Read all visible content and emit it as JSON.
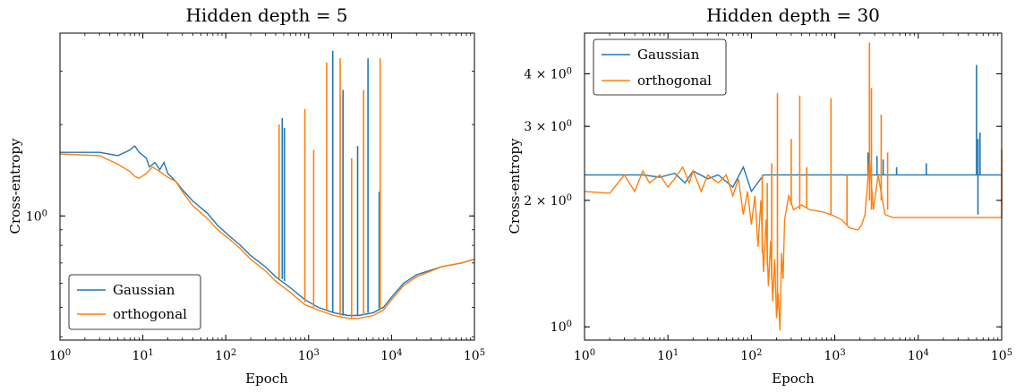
{
  "colors": {
    "gaussian": "#1f77b4",
    "orthogonal": "#ff7f0e"
  },
  "chart_data": [
    {
      "type": "line",
      "title": "Hidden depth = 5",
      "xlabel": "Epoch",
      "ylabel": "Cross-entropy",
      "xscale": "log",
      "yscale": "log",
      "xlim": [
        1,
        100000
      ],
      "ylim": [
        0.39,
        4.0
      ],
      "xticks": [
        {
          "v": 1,
          "b": "10",
          "e": "0"
        },
        {
          "v": 10,
          "b": "10",
          "e": "1"
        },
        {
          "v": 100,
          "b": "10",
          "e": "2"
        },
        {
          "v": 1000,
          "b": "10",
          "e": "3"
        },
        {
          "v": 10000,
          "b": "10",
          "e": "4"
        },
        {
          "v": 100000,
          "b": "10",
          "e": "5"
        }
      ],
      "yticks": [
        {
          "v": 1.0,
          "b": "10",
          "e": "0"
        }
      ],
      "legend_loc": "lower-left",
      "grid": false,
      "series": [
        {
          "name": "Gaussian",
          "color": "#1f77b4",
          "points": [
            [
              1,
              1.62
            ],
            [
              3,
              1.62
            ],
            [
              5,
              1.58
            ],
            [
              7,
              1.65
            ],
            [
              8,
              1.7
            ],
            [
              9,
              1.62
            ],
            [
              11,
              1.55
            ],
            [
              12,
              1.45
            ],
            [
              14,
              1.5
            ],
            [
              16,
              1.42
            ],
            [
              18,
              1.5
            ],
            [
              20,
              1.38
            ],
            [
              25,
              1.3
            ],
            [
              30,
              1.22
            ],
            [
              40,
              1.12
            ],
            [
              60,
              1.02
            ],
            [
              80,
              0.93
            ],
            [
              110,
              0.86
            ],
            [
              150,
              0.8
            ],
            [
              200,
              0.74
            ],
            [
              300,
              0.68
            ],
            [
              400,
              0.63
            ],
            [
              600,
              0.58
            ],
            [
              900,
              0.53
            ],
            [
              1300,
              0.5
            ],
            [
              2000,
              0.48
            ],
            [
              3000,
              0.47
            ],
            [
              4000,
              0.47
            ],
            [
              6000,
              0.48
            ],
            [
              8000,
              0.5
            ],
            [
              10000,
              0.54
            ],
            [
              14000,
              0.6
            ],
            [
              20000,
              0.64
            ],
            [
              40000,
              0.68
            ],
            [
              70000,
              0.7
            ],
            [
              100000,
              0.72
            ]
          ],
          "spikes": [
            {
              "x": 480,
              "base": 0.62,
              "peak": 2.1
            },
            {
              "x": 510,
              "base": 0.61,
              "peak": 1.95
            },
            {
              "x": 1950,
              "base": 0.48,
              "peak": 3.5
            },
            {
              "x": 2600,
              "base": 0.47,
              "peak": 2.6
            },
            {
              "x": 3900,
              "base": 0.47,
              "peak": 1.7
            },
            {
              "x": 5200,
              "base": 0.48,
              "peak": 3.3
            },
            {
              "x": 7100,
              "base": 0.49,
              "peak": 1.2
            }
          ]
        },
        {
          "name": "orthogonal",
          "color": "#ff7f0e",
          "points": [
            [
              1,
              1.6
            ],
            [
              3,
              1.58
            ],
            [
              5,
              1.48
            ],
            [
              7,
              1.4
            ],
            [
              8,
              1.35
            ],
            [
              9,
              1.33
            ],
            [
              11,
              1.38
            ],
            [
              13,
              1.45
            ],
            [
              16,
              1.4
            ],
            [
              20,
              1.34
            ],
            [
              25,
              1.3
            ],
            [
              30,
              1.2
            ],
            [
              40,
              1.08
            ],
            [
              60,
              0.98
            ],
            [
              80,
              0.9
            ],
            [
              110,
              0.84
            ],
            [
              150,
              0.78
            ],
            [
              200,
              0.72
            ],
            [
              300,
              0.66
            ],
            [
              400,
              0.61
            ],
            [
              600,
              0.56
            ],
            [
              900,
              0.51
            ],
            [
              1300,
              0.49
            ],
            [
              2000,
              0.47
            ],
            [
              3000,
              0.46
            ],
            [
              4000,
              0.46
            ],
            [
              6000,
              0.47
            ],
            [
              8000,
              0.49
            ],
            [
              10000,
              0.53
            ],
            [
              14000,
              0.59
            ],
            [
              20000,
              0.63
            ],
            [
              40000,
              0.68
            ],
            [
              70000,
              0.7
            ],
            [
              100000,
              0.72
            ]
          ],
          "spikes": [
            {
              "x": 440,
              "base": 0.62,
              "peak": 2.0
            },
            {
              "x": 900,
              "base": 0.52,
              "peak": 2.25
            },
            {
              "x": 1150,
              "base": 0.5,
              "peak": 1.65
            },
            {
              "x": 1650,
              "base": 0.49,
              "peak": 3.2
            },
            {
              "x": 2400,
              "base": 0.47,
              "peak": 3.3
            },
            {
              "x": 3300,
              "base": 0.46,
              "peak": 1.55
            },
            {
              "x": 4600,
              "base": 0.47,
              "peak": 2.6
            },
            {
              "x": 7300,
              "base": 0.49,
              "peak": 3.3
            }
          ]
        }
      ]
    },
    {
      "type": "line",
      "title": "Hidden depth = 30",
      "xlabel": "Epoch",
      "ylabel": "Cross-entropy",
      "xscale": "log",
      "yscale": "log",
      "xlim": [
        1,
        100000
      ],
      "ylim": [
        0.93,
        5.0
      ],
      "xticks": [
        {
          "v": 1,
          "b": "10",
          "e": "0"
        },
        {
          "v": 10,
          "b": "10",
          "e": "1"
        },
        {
          "v": 100,
          "b": "10",
          "e": "2"
        },
        {
          "v": 1000,
          "b": "10",
          "e": "3"
        },
        {
          "v": 10000,
          "b": "10",
          "e": "4"
        },
        {
          "v": 100000,
          "b": "10",
          "e": "5"
        }
      ],
      "yticks": [
        {
          "v": 1.0,
          "b": "10",
          "e": "0"
        },
        {
          "v": 2.0,
          "b": "2 × 10",
          "e": "0"
        },
        {
          "v": 3.0,
          "b": "3 × 10",
          "e": "0"
        },
        {
          "v": 4.0,
          "b": "4 × 10",
          "e": "0"
        }
      ],
      "legend_loc": "upper-left",
      "grid": false,
      "series": [
        {
          "name": "Gaussian",
          "color": "#1f77b4",
          "points": [
            [
              1,
              2.3
            ],
            [
              3,
              2.3
            ],
            [
              5,
              2.3
            ],
            [
              8,
              2.27
            ],
            [
              12,
              2.32
            ],
            [
              16,
              2.2
            ],
            [
              20,
              2.35
            ],
            [
              30,
              2.25
            ],
            [
              40,
              2.3
            ],
            [
              60,
              2.15
            ],
            [
              80,
              2.4
            ],
            [
              100,
              2.1
            ],
            [
              140,
              2.3
            ],
            [
              200,
              2.3
            ],
            [
              500,
              2.3
            ],
            [
              1000,
              2.3
            ],
            [
              2500,
              2.3
            ],
            [
              4000,
              2.3
            ],
            [
              10000,
              2.3
            ],
            [
              50000,
              2.3
            ],
            [
              100000,
              2.3
            ]
          ],
          "spikes": [
            {
              "x": 2500,
              "base": 2.3,
              "peak": 2.6
            },
            {
              "x": 3200,
              "base": 2.3,
              "peak": 2.55
            },
            {
              "x": 3800,
              "base": 2.3,
              "peak": 2.5
            },
            {
              "x": 5500,
              "base": 2.3,
              "peak": 2.4
            },
            {
              "x": 12500,
              "base": 2.3,
              "peak": 2.45
            },
            {
              "x": 50000,
              "base": 2.3,
              "peak": 4.2
            },
            {
              "x": 52000,
              "base": 1.85,
              "peak": 2.8
            },
            {
              "x": 55000,
              "base": 2.3,
              "peak": 2.9
            }
          ]
        },
        {
          "name": "orthogonal",
          "color": "#ff7f0e",
          "points": [
            [
              1,
              2.1
            ],
            [
              2,
              2.08
            ],
            [
              3,
              2.3
            ],
            [
              4,
              2.1
            ],
            [
              5,
              2.35
            ],
            [
              6,
              2.2
            ],
            [
              8,
              2.3
            ],
            [
              10,
              2.15
            ],
            [
              12,
              2.25
            ],
            [
              15,
              2.4
            ],
            [
              18,
              2.2
            ],
            [
              20,
              2.35
            ],
            [
              25,
              2.1
            ],
            [
              30,
              2.3
            ],
            [
              40,
              2.2
            ],
            [
              50,
              2.3
            ],
            [
              60,
              2.05
            ],
            [
              70,
              2.25
            ],
            [
              80,
              1.85
            ],
            [
              90,
              2.1
            ],
            [
              100,
              1.75
            ],
            [
              110,
              2.05
            ],
            [
              120,
              1.55
            ],
            [
              130,
              2.0
            ],
            [
              140,
              1.35
            ],
            [
              150,
              1.8
            ],
            [
              160,
              1.25
            ],
            [
              170,
              1.6
            ],
            [
              180,
              1.15
            ],
            [
              190,
              1.45
            ],
            [
              200,
              1.05
            ],
            [
              210,
              1.2
            ],
            [
              220,
              0.98
            ],
            [
              230,
              1.5
            ],
            [
              240,
              1.3
            ],
            [
              250,
              1.8
            ],
            [
              280,
              2.05
            ],
            [
              320,
              1.9
            ],
            [
              400,
              1.95
            ],
            [
              500,
              1.9
            ],
            [
              700,
              1.88
            ],
            [
              900,
              1.85
            ],
            [
              1200,
              1.8
            ],
            [
              1500,
              1.72
            ],
            [
              1900,
              1.7
            ],
            [
              2100,
              1.75
            ],
            [
              2300,
              1.85
            ],
            [
              2600,
              2.5
            ],
            [
              2900,
              1.9
            ],
            [
              3300,
              2.3
            ],
            [
              4000,
              1.85
            ],
            [
              5000,
              1.82
            ],
            [
              10000,
              1.82
            ],
            [
              30000,
              1.82
            ],
            [
              100000,
              1.82
            ]
          ],
          "spikes": [
            {
              "x": 135,
              "base": 1.5,
              "peak": 2.3
            },
            {
              "x": 155,
              "base": 1.4,
              "peak": 2.2
            },
            {
              "x": 175,
              "base": 1.3,
              "peak": 2.45
            },
            {
              "x": 205,
              "base": 1.1,
              "peak": 3.6
            },
            {
              "x": 300,
              "base": 1.95,
              "peak": 2.8
            },
            {
              "x": 380,
              "base": 1.9,
              "peak": 3.55
            },
            {
              "x": 460,
              "base": 1.92,
              "peak": 2.4
            },
            {
              "x": 900,
              "base": 1.85,
              "peak": 3.5
            },
            {
              "x": 1400,
              "base": 1.75,
              "peak": 2.3
            },
            {
              "x": 2600,
              "base": 2.0,
              "peak": 4.75
            },
            {
              "x": 2750,
              "base": 1.9,
              "peak": 3.7
            },
            {
              "x": 3600,
              "base": 2.0,
              "peak": 3.2
            },
            {
              "x": 4300,
              "base": 1.9,
              "peak": 2.6
            },
            {
              "x": 100000,
              "base": 1.82,
              "peak": 2.65
            }
          ]
        }
      ]
    }
  ]
}
